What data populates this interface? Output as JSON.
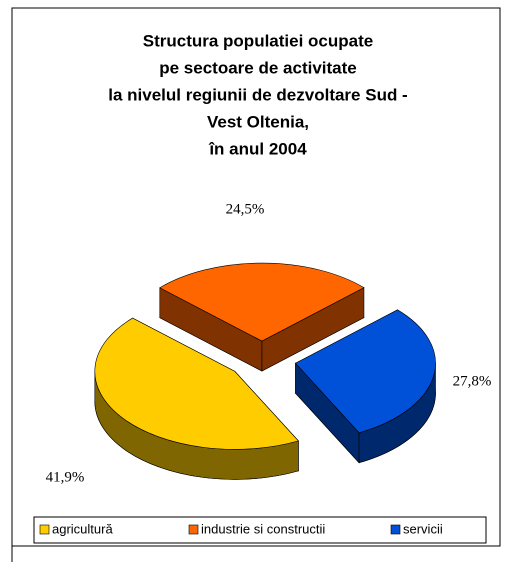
{
  "chart_data": {
    "type": "pie3d",
    "title": [
      "Structura populatiei ocupate",
      "pe sectoare de activitate",
      "la nivelul regiunii de dezvoltare Sud -",
      "Vest Oltenia,",
      "în anul 2004"
    ],
    "categories": [
      "agricultură",
      "industrie si constructii",
      "servicii"
    ],
    "values": [
      41.9,
      24.5,
      27.8
    ],
    "value_labels": [
      "41,9%",
      "24,5%",
      "27,8%"
    ],
    "colors": [
      "#ffcc00",
      "#ff6600",
      "#0050d8"
    ],
    "legend": "bottom"
  }
}
